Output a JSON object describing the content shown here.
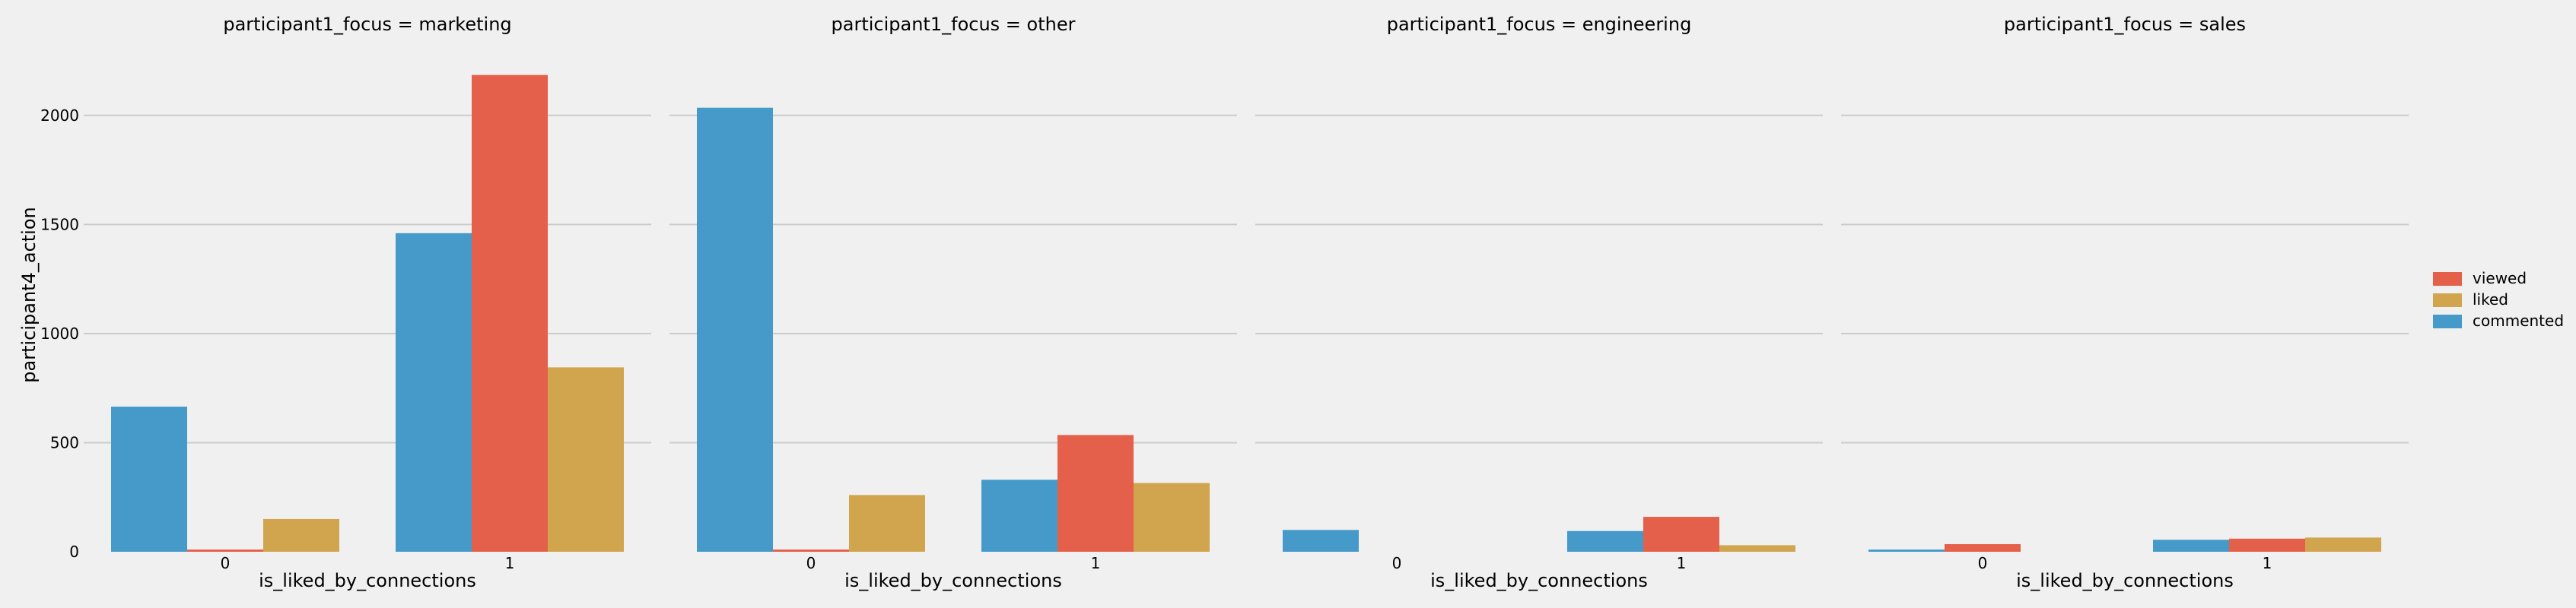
{
  "chart_data": {
    "type": "bar",
    "ylabel": "participant4_action",
    "ylim": [
      0,
      2250
    ],
    "yticks": [
      0,
      500,
      1000,
      1500,
      2000
    ],
    "grid": true,
    "legend_position": "right",
    "hue_order": [
      "commented",
      "viewed",
      "liked"
    ],
    "legend": [
      {
        "name": "viewed",
        "color": "#e5604a"
      },
      {
        "name": "liked",
        "color": "#d1a54e"
      },
      {
        "name": "commented",
        "color": "#459ac9"
      }
    ],
    "colors": {
      "commented": "#459ac9",
      "viewed": "#e5604a",
      "liked": "#d1a54e"
    },
    "facets": [
      {
        "title": "participant1_focus = marketing",
        "xlabel": "is_liked_by_connections",
        "categories": [
          "0",
          "1"
        ],
        "series": [
          {
            "name": "commented",
            "values": [
              665,
              1460
            ]
          },
          {
            "name": "viewed",
            "values": [
              10,
              2185
            ]
          },
          {
            "name": "liked",
            "values": [
              150,
              845
            ]
          }
        ]
      },
      {
        "title": "participant1_focus = other",
        "xlabel": "is_liked_by_connections",
        "categories": [
          "0",
          "1"
        ],
        "series": [
          {
            "name": "commented",
            "values": [
              2035,
              330
            ]
          },
          {
            "name": "viewed",
            "values": [
              10,
              535
            ]
          },
          {
            "name": "liked",
            "values": [
              260,
              315
            ]
          }
        ]
      },
      {
        "title": "participant1_focus = engineering",
        "xlabel": "is_liked_by_connections",
        "categories": [
          "0",
          "1"
        ],
        "series": [
          {
            "name": "commented",
            "values": [
              100,
              95
            ]
          },
          {
            "name": "viewed",
            "values": [
              0,
              160
            ]
          },
          {
            "name": "liked",
            "values": [
              0,
              30
            ]
          }
        ]
      },
      {
        "title": "participant1_focus = sales",
        "xlabel": "is_liked_by_connections",
        "categories": [
          "0",
          "1"
        ],
        "series": [
          {
            "name": "commented",
            "values": [
              10,
              55
            ]
          },
          {
            "name": "viewed",
            "values": [
              35,
              60
            ]
          },
          {
            "name": "liked",
            "values": [
              0,
              65
            ]
          }
        ]
      }
    ]
  }
}
